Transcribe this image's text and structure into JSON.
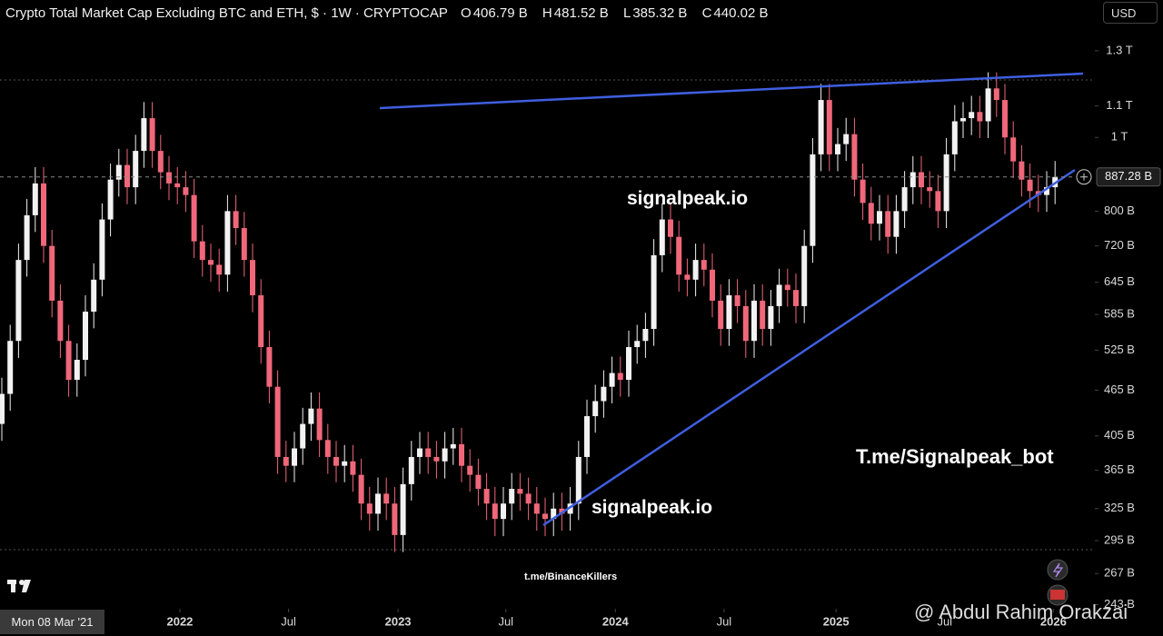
{
  "chart_data": {
    "type": "candlestick",
    "title": "Crypto Total Market Cap Excluding BTC and ETH, $ · 1W · CRYPTOCAP",
    "header_stats": [
      {
        "key": "O",
        "text": "406.79 B"
      },
      {
        "key": "H",
        "text": "481.52 B"
      },
      {
        "key": "L",
        "text": "385.32 B"
      },
      {
        "key": "C",
        "text": "440.02 B"
      }
    ],
    "currency": "USD",
    "crosshair_date": "Mon 08 Mar '21",
    "log_scale": true,
    "ylim": [
      240,
      1516
    ],
    "yticks": [
      {
        "value": 1300,
        "label": "1.3 T"
      },
      {
        "value": 1100,
        "label": "1.1 T"
      },
      {
        "value": 1000,
        "label": "1 T"
      },
      {
        "value": 800,
        "label": "800 B"
      },
      {
        "value": 720,
        "label": "720 B"
      },
      {
        "value": 645,
        "label": "645 B"
      },
      {
        "value": 585,
        "label": "585 B"
      },
      {
        "value": 525,
        "label": "525 B"
      },
      {
        "value": 465,
        "label": "465 B"
      },
      {
        "value": 405,
        "label": "405 B"
      },
      {
        "value": 365,
        "label": "365 B"
      },
      {
        "value": 325,
        "label": "325 B"
      },
      {
        "value": 295,
        "label": "295 B"
      },
      {
        "value": 267,
        "label": "267 B"
      },
      {
        "value": 243,
        "label": "243 B"
      }
    ],
    "xticks": [
      {
        "value": 21.3,
        "label": "2022"
      },
      {
        "value": 34.3,
        "label": "Jul"
      },
      {
        "value": 47.4,
        "label": "2023"
      },
      {
        "value": 60.3,
        "label": "Jul"
      },
      {
        "value": 73.4,
        "label": "2024"
      },
      {
        "value": 86.4,
        "label": "Jul"
      },
      {
        "value": 99.8,
        "label": "2025"
      },
      {
        "value": 112.8,
        "label": "Jul"
      },
      {
        "value": 125.8,
        "label": "2026"
      }
    ],
    "last_price": {
      "value": 887.28,
      "label": "887.28 B"
    },
    "colors": {
      "up": "#f2f2f2",
      "down": "#f0677a",
      "trendline": "#3f5fe0"
    },
    "series": [
      {
        "open": [
          420,
          460,
          540,
          690,
          790,
          870,
          720,
          610,
          540,
          480,
          510,
          590,
          650,
          780,
          880,
          920,
          860,
          960,
          1060,
          960,
          900,
          870,
          860,
          840,
          730,
          690,
          680,
          660,
          800,
          760,
          690,
          620,
          530,
          470,
          380,
          370,
          390,
          420,
          440,
          400,
          380,
          370,
          375,
          360,
          330,
          320,
          340,
          330,
          300,
          350,
          380,
          390,
          380,
          375,
          390,
          395,
          370,
          360,
          345,
          330,
          315,
          330,
          345,
          340,
          330,
          320,
          315,
          325,
          320,
          330,
          380,
          430,
          450,
          470,
          490,
          480,
          530,
          540,
          560,
          700,
          780,
          740,
          660,
          650,
          690,
          670,
          610,
          560,
          620,
          600,
          540,
          610,
          560,
          600,
          640,
          630,
          600,
          720,
          950,
          1120,
          950,
          980,
          1010,
          880,
          820,
          770,
          800,
          740,
          800,
          860,
          900,
          860,
          850,
          800,
          950,
          1050,
          1060,
          1080,
          1050,
          1160,
          1120,
          1000,
          930,
          880,
          850,
          840,
          860
        ],
        "high": [
          483,
          567,
          725,
          830,
          914,
          914,
          756,
          641,
          567,
          536,
          620,
          683,
          819,
          924,
          966,
          966,
          1008,
          1113,
          1113,
          1008,
          945,
          914,
          903,
          882,
          767,
          725,
          714,
          840,
          840,
          798,
          725,
          651,
          557,
          494,
          399,
          410,
          441,
          462,
          462,
          420,
          399,
          394,
          394,
          378,
          347,
          357,
          357,
          347,
          368,
          399,
          410,
          410,
          399,
          410,
          415,
          415,
          389,
          378,
          362,
          347,
          347,
          362,
          362,
          357,
          347,
          336,
          341,
          341,
          347,
          399,
          452,
          473,
          494,
          515,
          515,
          557,
          567,
          588,
          735,
          819,
          819,
          777,
          693,
          725,
          725,
          704,
          641,
          651,
          651,
          630,
          641,
          641,
          630,
          672,
          672,
          662,
          756,
          998,
          1176,
          1176,
          1029,
          1061,
          1061,
          924,
          861,
          840,
          840,
          840,
          903,
          945,
          945,
          903,
          893,
          998,
          1103,
          1113,
          1134,
          1134,
          1218,
          1218,
          1176,
          1050,
          977,
          924,
          893,
          903,
          931
        ],
        "low": [
          399,
          437,
          513,
          656,
          751,
          684,
          580,
          513,
          456,
          456,
          485,
          561,
          618,
          741,
          836,
          817,
          817,
          912,
          912,
          855,
          827,
          817,
          798,
          694,
          656,
          646,
          627,
          627,
          722,
          656,
          589,
          504,
          447,
          361,
          352,
          352,
          371,
          399,
          380,
          361,
          352,
          352,
          342,
          314,
          304,
          304,
          314,
          285,
          285,
          333,
          361,
          361,
          356,
          356,
          371,
          352,
          342,
          328,
          314,
          299,
          299,
          314,
          323,
          314,
          304,
          299,
          299,
          304,
          304,
          314,
          361,
          409,
          428,
          447,
          456,
          456,
          504,
          513,
          532,
          665,
          703,
          627,
          618,
          618,
          637,
          580,
          532,
          532,
          570,
          513,
          513,
          532,
          532,
          570,
          599,
          570,
          570,
          684,
          903,
          903,
          903,
          931,
          836,
          779,
          732,
          732,
          703,
          703,
          760,
          817,
          817,
          808,
          760,
          760,
          903,
          998,
          1007,
          998,
          998,
          1064,
          950,
          884,
          836,
          808,
          798,
          798,
          817
        ],
        "close": [
          460,
          540,
          690,
          790,
          870,
          720,
          610,
          540,
          480,
          510,
          590,
          650,
          780,
          880,
          920,
          860,
          960,
          1060,
          960,
          900,
          870,
          860,
          840,
          730,
          690,
          680,
          660,
          800,
          760,
          690,
          620,
          530,
          470,
          380,
          370,
          390,
          420,
          440,
          400,
          380,
          370,
          375,
          360,
          330,
          320,
          340,
          330,
          300,
          350,
          380,
          390,
          380,
          375,
          390,
          395,
          370,
          360,
          345,
          330,
          315,
          330,
          345,
          340,
          330,
          320,
          315,
          325,
          320,
          330,
          380,
          430,
          450,
          470,
          490,
          480,
          530,
          540,
          560,
          700,
          780,
          740,
          660,
          650,
          690,
          670,
          610,
          560,
          620,
          600,
          540,
          610,
          560,
          600,
          640,
          630,
          600,
          720,
          950,
          1120,
          950,
          980,
          1010,
          880,
          820,
          770,
          800,
          740,
          800,
          860,
          900,
          860,
          850,
          800,
          950,
          1050,
          1060,
          1080,
          1050,
          1160,
          1120,
          1000,
          930,
          880,
          850,
          840,
          860,
          887
        ]
      }
    ],
    "annotations": [
      "signalpeak.io",
      "signalpeak.io",
      "T.me/Signalpeak_bot",
      "t.me/BinanceKillers",
      "@ Abdul Rahim Orakzai"
    ]
  }
}
